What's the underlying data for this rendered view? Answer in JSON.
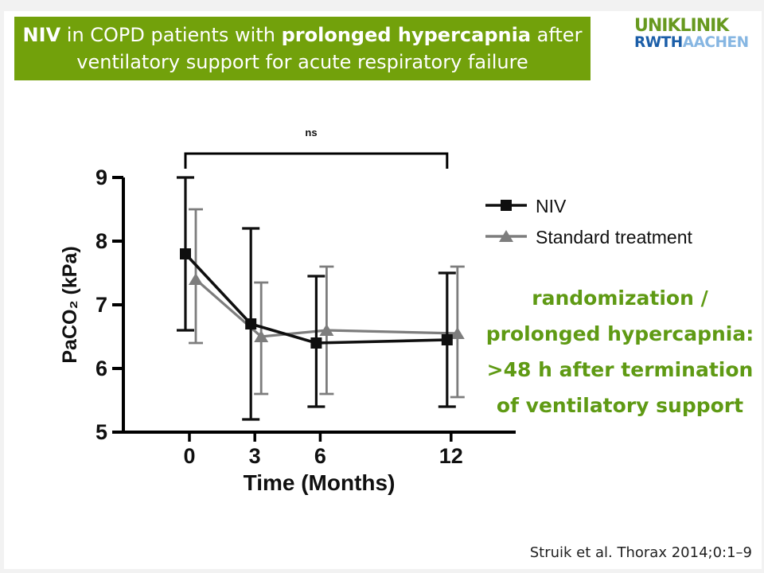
{
  "header": {
    "bg_color": "#72A10B",
    "line1_parts": [
      {
        "text": "NIV",
        "bold": true
      },
      {
        "text": " in COPD patients with ",
        "bold": false
      },
      {
        "text": "prolonged hypercapnia",
        "bold": true
      },
      {
        "text": " after",
        "bold": false
      }
    ],
    "line2": "ventilatory support for acute respiratory failure"
  },
  "logo": {
    "top": "UNIKLINIK",
    "bottom_dark": "RWTH",
    "bottom_light": "AACHEN",
    "green": "#67991F",
    "dark_blue": "#1B5EA8",
    "light_blue": "#86B6E2"
  },
  "note": {
    "color": "#5F9A14",
    "lines": [
      "randomization /",
      "prolonged hypercapnia:",
      ">48 h after termination",
      "of ventilatory support"
    ]
  },
  "citation": {
    "text": "Struik et al. Thorax 2014;0:1–9"
  },
  "chart_data": {
    "type": "line",
    "x": [
      0,
      3,
      6,
      12
    ],
    "xlabel": "Time (Months)",
    "ylabel": "PaCO₂ (kPa)",
    "yticks": [
      5,
      6,
      7,
      8,
      9
    ],
    "ylim": [
      5,
      9
    ],
    "grid": false,
    "legend_position": "upper right",
    "series": [
      {
        "name": "NIV",
        "color": "#0F0F0F",
        "marker": "square",
        "values": [
          7.8,
          6.7,
          6.4,
          6.45
        ],
        "err_low": [
          6.6,
          5.2,
          5.4,
          5.4
        ],
        "err_high": [
          9.0,
          8.2,
          7.45,
          7.5
        ]
      },
      {
        "name": "Standard treatment",
        "color": "#7D7D7D",
        "marker": "triangle",
        "values": [
          7.4,
          6.5,
          6.6,
          6.55
        ],
        "err_low": [
          6.4,
          5.6,
          5.6,
          5.55
        ],
        "err_high": [
          8.5,
          7.35,
          7.6,
          7.6
        ]
      }
    ],
    "significance": {
      "label": "ns",
      "from_x": 0,
      "to_x": 12
    }
  }
}
